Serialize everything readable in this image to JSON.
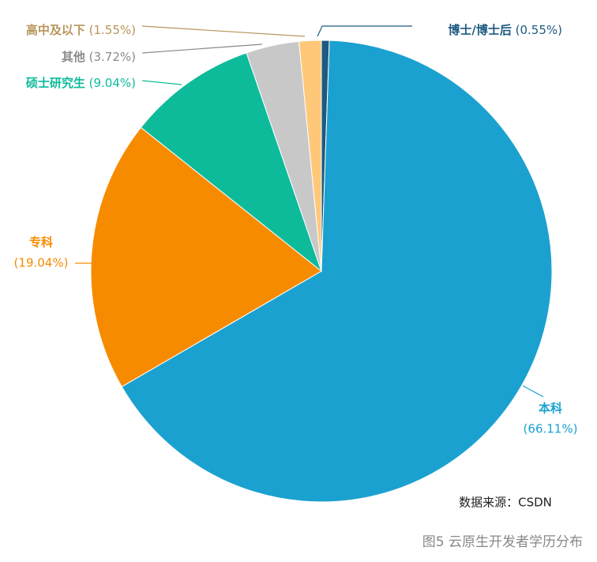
{
  "chart_data": {
    "type": "pie",
    "categories": [
      "博士/博士后",
      "本科",
      "专科",
      "硕士研究生",
      "其他",
      "高中及以下"
    ],
    "values": [
      0.55,
      66.11,
      19.04,
      9.04,
      3.72,
      1.55
    ],
    "value_labels": [
      "(0.55%)",
      "(66.11%)",
      "(19.04%)",
      "(9.04%)",
      "(3.72%)",
      "(1.55%)"
    ],
    "colors": [
      "#1d5a80",
      "#1ba1d0",
      "#f78b00",
      "#0dbb9b",
      "#c8c8c8",
      "#ffc878"
    ],
    "label_colors": [
      "#1d5a80",
      "#1ba1d0",
      "#f78b00",
      "#0dbb9b",
      "#8a8a8a",
      "#b8955a"
    ],
    "source": "数据来源：CSDN",
    "caption": "图5  云原生开发者学历分布"
  }
}
